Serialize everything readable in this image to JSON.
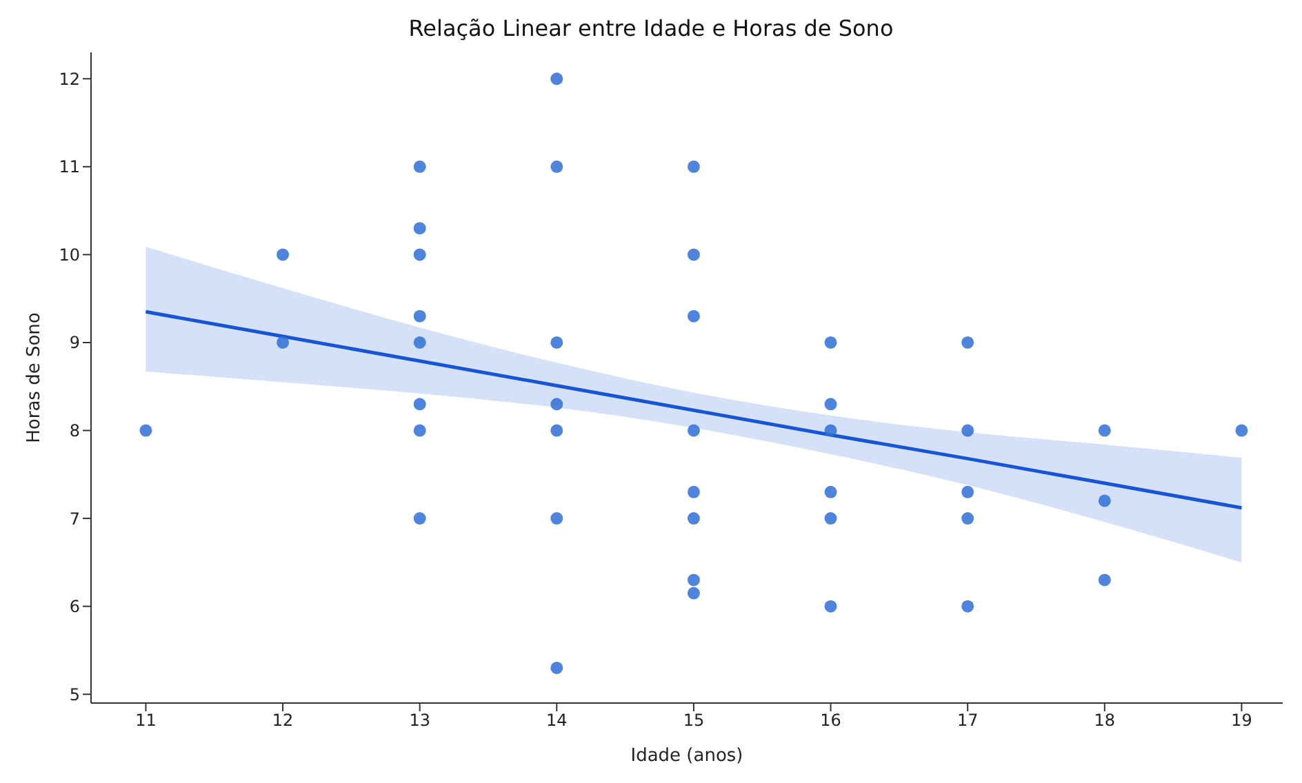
{
  "chart_data": {
    "type": "scatter",
    "title": "Relação Linear entre Idade e Horas de Sono",
    "xlabel": "Idade (anos)",
    "ylabel": "Horas de Sono",
    "xlim": [
      10.6,
      19.3
    ],
    "xticks": [
      11,
      12,
      13,
      14,
      15,
      16,
      17,
      18,
      19
    ],
    "ylim": [
      4.9,
      12.3
    ],
    "yticks": [
      5,
      6,
      7,
      8,
      9,
      10,
      11,
      12
    ],
    "grid": false,
    "legend": false,
    "series": [
      {
        "marker": "circle",
        "color": "#2f6fd6",
        "x": [
          11,
          12,
          12,
          13,
          13,
          13,
          13,
          13,
          13,
          13,
          13,
          14,
          14,
          14,
          14,
          14,
          14,
          14,
          15,
          15,
          15,
          15,
          15,
          15,
          15,
          15,
          16,
          16,
          16,
          16,
          16,
          16,
          17,
          17,
          17,
          17,
          17,
          18,
          18,
          18,
          19
        ],
        "values": [
          8,
          10,
          9,
          11,
          10.3,
          10,
          9.3,
          9,
          8.3,
          8,
          7,
          12,
          11,
          9,
          8.3,
          8,
          7,
          5.3,
          11,
          10,
          9.3,
          8,
          7.3,
          7,
          6.3,
          6.15,
          9,
          8.3,
          8,
          7.3,
          7,
          6,
          9,
          8,
          7.3,
          7,
          6,
          8,
          7.2,
          6.3,
          8
        ]
      },
      {
        "type": "line",
        "color": "#1656d6",
        "x": [
          11,
          12,
          13,
          14,
          15,
          16,
          17,
          18,
          19
        ],
        "values": [
          9.35,
          9.07,
          8.79,
          8.51,
          8.23,
          7.95,
          7.68,
          7.4,
          7.12
        ],
        "lower": [
          8.67,
          8.55,
          8.42,
          8.26,
          8.03,
          7.73,
          7.38,
          6.96,
          6.5
        ],
        "upper": [
          10.09,
          9.62,
          9.17,
          8.77,
          8.43,
          8.17,
          7.98,
          7.84,
          7.69
        ]
      }
    ]
  }
}
